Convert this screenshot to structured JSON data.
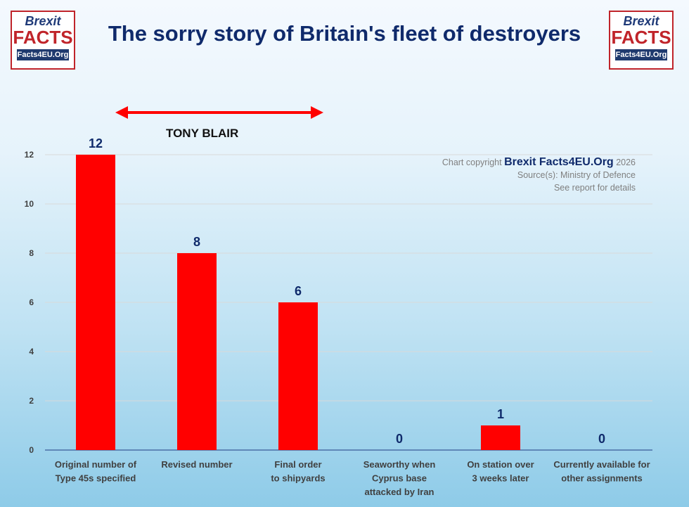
{
  "title": "The sorry story of Britain's fleet of destroyers",
  "logo": {
    "line1": "Brexit",
    "line2": "FACTS",
    "line3": "Facts4EU.Org"
  },
  "annotation": "TONY BLAIR",
  "credit": {
    "prefix": "Chart copyright",
    "brand": "Brexit Facts4EU.Org",
    "year": "2026",
    "source": "Source(s): Ministry of Defence",
    "note": "See report for details"
  },
  "colors": {
    "bar": "#ff0000",
    "title": "#0f2a6b",
    "arrow": "#ff0000"
  },
  "chart_data": {
    "type": "bar",
    "categories": [
      [
        "Original number of",
        "Type 45s specified"
      ],
      [
        "Revised number"
      ],
      [
        "Final order",
        "to shipyards"
      ],
      [
        "Seaworthy when",
        "Cyprus base",
        "attacked by Iran"
      ],
      [
        "On station over",
        "3 weeks later"
      ],
      [
        "Currently available for",
        "other assignments"
      ]
    ],
    "values": [
      12,
      8,
      6,
      0,
      1,
      0
    ],
    "ylim": [
      0,
      12
    ],
    "yticks": [
      0,
      2,
      4,
      6,
      8,
      10,
      12
    ],
    "grid": true,
    "data_labels": true
  }
}
